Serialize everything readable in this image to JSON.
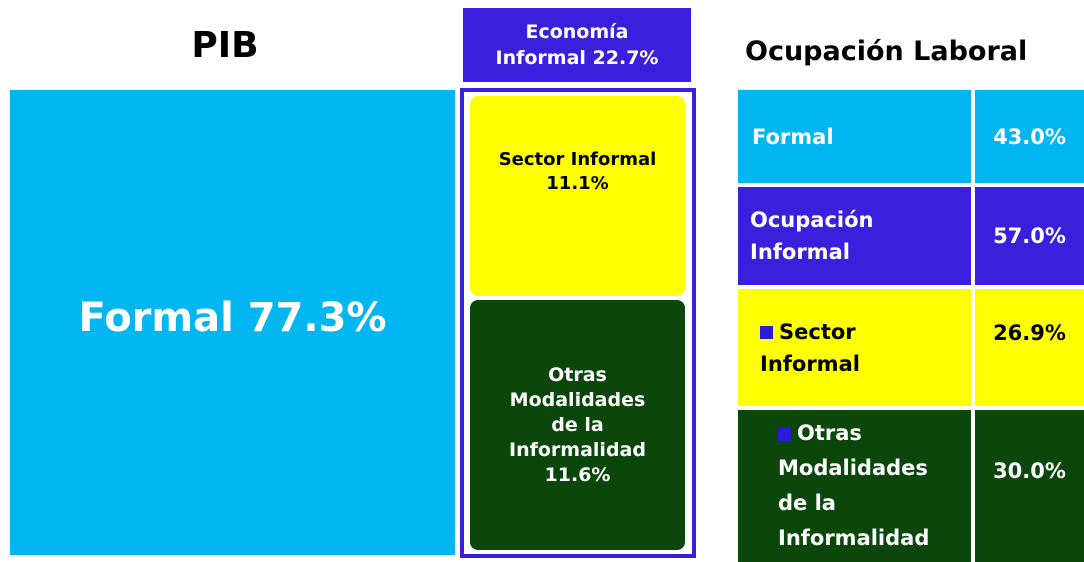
{
  "pib": {
    "title": "PIB",
    "formal": "Formal 77.3%",
    "informal_header": [
      "Economía",
      "Informal 22.7%"
    ],
    "sector_informal": [
      "Sector Informal",
      "11.1%"
    ],
    "otras": [
      "Otras",
      "Modalidades",
      "de la",
      "Informalidad",
      "11.6%"
    ]
  },
  "ocupacion": {
    "title": "Ocupación Laboral",
    "rows": [
      {
        "label": [
          "Formal"
        ],
        "value": "43.0%"
      },
      {
        "label": [
          "Ocupación",
          "Informal"
        ],
        "value": "57.0%"
      },
      {
        "label": [
          "Sector",
          "Informal"
        ],
        "value": "26.9%"
      },
      {
        "label": [
          "Otras",
          "Modalidades",
          "de la",
          "Informalidad"
        ],
        "value": "30.0%"
      }
    ]
  }
}
